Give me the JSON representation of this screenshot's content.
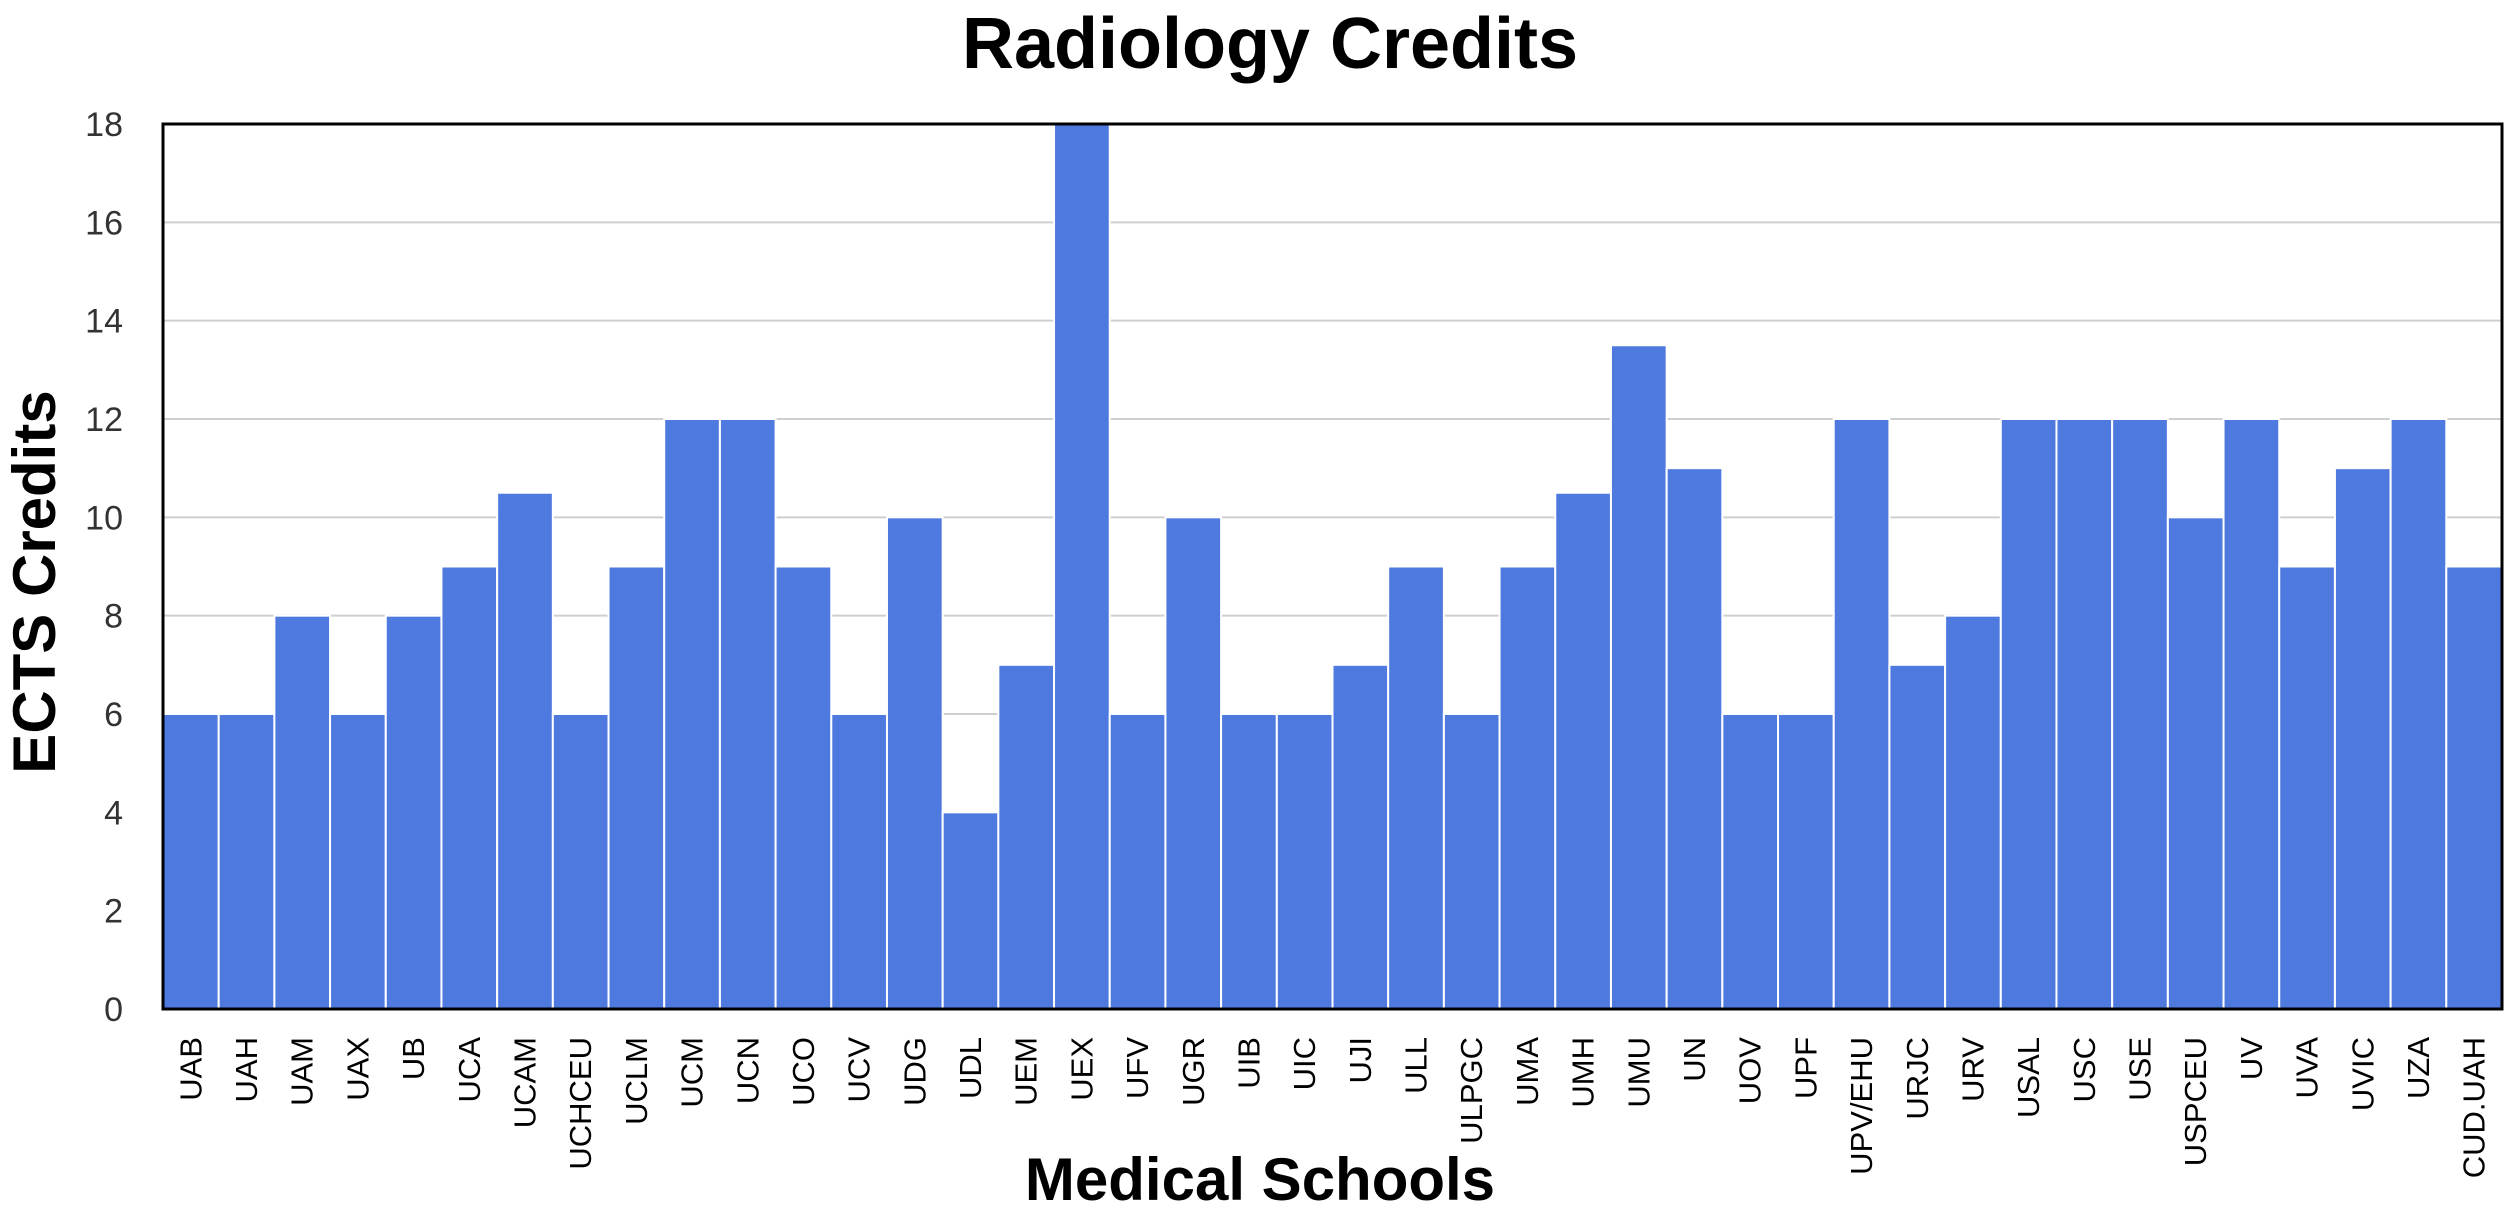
{
  "chart_data": {
    "type": "bar",
    "title": "Radiology Credits",
    "xlabel": "Medical Schools",
    "ylabel": "ECTS Credits",
    "ylim": [
      0,
      18
    ],
    "yticks": [
      0,
      2,
      4,
      6,
      8,
      10,
      12,
      14,
      16,
      18
    ],
    "grid": true,
    "legend": "none",
    "bar_color": "#4E79DF",
    "categories": [
      "UAB",
      "UAH",
      "UAM",
      "UAX",
      "UB",
      "UCA",
      "UCAM",
      "UCHCEU",
      "UCLM",
      "UCM",
      "UCN",
      "UCO",
      "UCV",
      "UDG",
      "UDL",
      "UEM",
      "UEX",
      "UFV",
      "UGR",
      "UIB",
      "UIC",
      "UJI",
      "ULL",
      "ULPGC",
      "UMA",
      "UMH",
      "UMU",
      "UN",
      "UOV",
      "UPF",
      "UPV/EHU",
      "URJC",
      "URV",
      "USAL",
      "USC",
      "USE",
      "USPCEU",
      "UV",
      "UVA",
      "UVIC",
      "UZA",
      "CUD.UAH"
    ],
    "values": [
      6,
      6,
      8,
      6,
      8,
      9,
      10.5,
      6,
      9,
      12,
      12,
      9,
      6,
      10,
      4,
      7,
      18,
      6,
      10,
      6,
      6,
      7,
      9,
      6,
      9,
      10.5,
      13.5,
      11,
      6,
      6,
      12,
      7,
      8,
      12,
      12,
      12,
      10,
      12,
      9,
      11,
      12,
      9
    ]
  }
}
